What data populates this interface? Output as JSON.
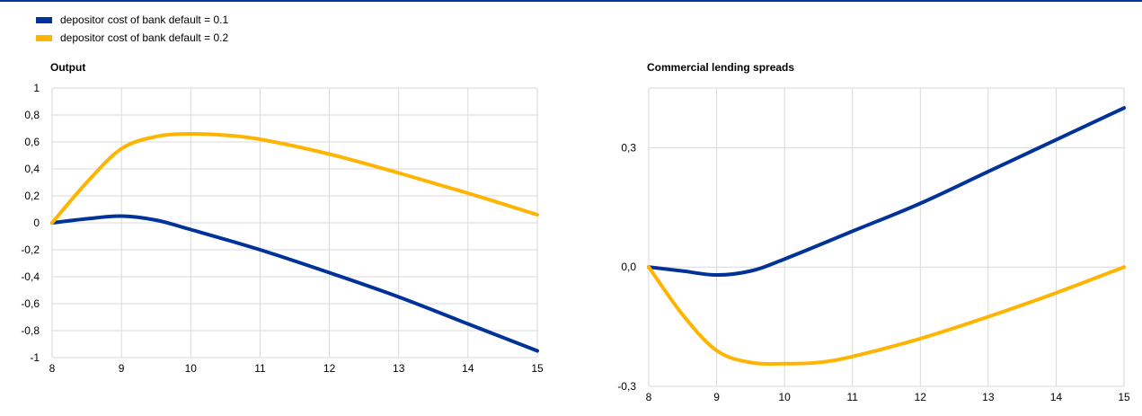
{
  "legend": [
    {
      "label": "depositor cost of bank default = 0.1",
      "color": "#003299"
    },
    {
      "label": "depositor cost of bank default = 0.2",
      "color": "#FFB400"
    }
  ],
  "chart_data": [
    {
      "type": "line",
      "title": "Output",
      "xlim": [
        8,
        15
      ],
      "ylim": [
        -1,
        1
      ],
      "xticks": [
        8,
        9,
        10,
        11,
        12,
        13,
        14,
        15
      ],
      "yticks": [
        1,
        0.8,
        0.6,
        0.4,
        0.2,
        0,
        -0.2,
        -0.4,
        -0.6,
        -0.8,
        -1
      ],
      "ytick_labels": [
        "1",
        "0,8",
        "0,6",
        "0,4",
        "0,2",
        "0",
        "-0,2",
        "-0,4",
        "-0,6",
        "-0,8",
        "-1"
      ],
      "grid": true,
      "series": [
        {
          "name": "depositor cost of bank default = 0.1",
          "color": "#003299",
          "x": [
            8,
            8.5,
            9,
            9.5,
            10,
            11,
            12,
            13,
            14,
            15
          ],
          "y": [
            0,
            0.03,
            0.05,
            0.02,
            -0.05,
            -0.2,
            -0.37,
            -0.55,
            -0.75,
            -0.95
          ]
        },
        {
          "name": "depositor cost of bank default = 0.2",
          "color": "#FFB400",
          "x": [
            8,
            8.5,
            9,
            9.5,
            10,
            10.5,
            11,
            12,
            13,
            14,
            15
          ],
          "y": [
            0,
            0.3,
            0.55,
            0.64,
            0.66,
            0.65,
            0.62,
            0.51,
            0.37,
            0.22,
            0.06
          ]
        }
      ]
    },
    {
      "type": "line",
      "title": "Commercial lending spreads",
      "xlim": [
        8,
        15
      ],
      "ylim": [
        -0.3,
        0.45
      ],
      "xticks": [
        8,
        9,
        10,
        11,
        12,
        13,
        14,
        15
      ],
      "yticks": [
        0.3,
        0,
        -0.3
      ],
      "ytick_labels": [
        "0,3",
        "0,0",
        "-0,3"
      ],
      "grid": true,
      "series": [
        {
          "name": "depositor cost of bank default = 0.1",
          "color": "#003299",
          "x": [
            8,
            8.5,
            9,
            9.5,
            10,
            11,
            12,
            13,
            14,
            15
          ],
          "y": [
            0,
            -0.01,
            -0.02,
            -0.01,
            0.02,
            0.09,
            0.16,
            0.24,
            0.32,
            0.4
          ]
        },
        {
          "name": "depositor cost of bank default = 0.2",
          "color": "#FFB400",
          "x": [
            8,
            8.5,
            9,
            9.5,
            10,
            10.5,
            11,
            12,
            13,
            14,
            15
          ],
          "y": [
            0,
            -0.12,
            -0.21,
            -0.24,
            -0.243,
            -0.24,
            -0.225,
            -0.18,
            -0.125,
            -0.065,
            0
          ]
        }
      ]
    }
  ]
}
